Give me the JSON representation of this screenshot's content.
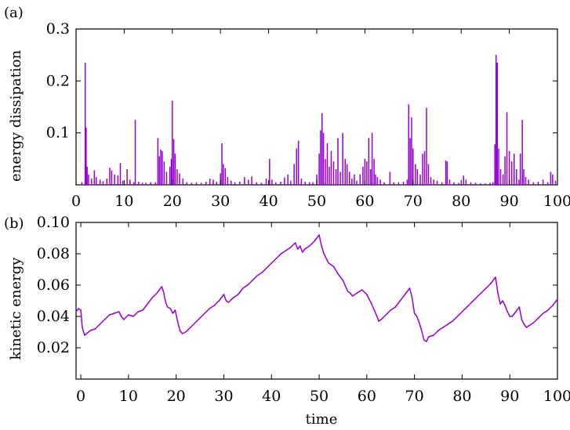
{
  "chart_data": [
    {
      "type": "bar",
      "panel_label": "(a)",
      "title": "",
      "xlabel": "",
      "ylabel": "energy dissipation",
      "xlim": [
        0,
        100
      ],
      "ylim": [
        0,
        0.3
      ],
      "x_ticks": [
        0,
        10,
        20,
        30,
        40,
        50,
        60,
        70,
        80,
        90,
        100
      ],
      "y_ticks": [
        0.1,
        0.2,
        0.3
      ],
      "y_tick_labels": [
        "0.1",
        "0.2",
        "0.3"
      ],
      "grid": false,
      "legend": "none",
      "color": "#9400d3",
      "series": [
        {
          "points": [
            [
              1.2,
              0.005
            ],
            [
              1.9,
              0.235
            ],
            [
              2.1,
              0.11
            ],
            [
              2.3,
              0.035
            ],
            [
              2.6,
              0.02
            ],
            [
              3.2,
              0.012
            ],
            [
              3.8,
              0.028
            ],
            [
              4.2,
              0.015
            ],
            [
              5.0,
              0.01
            ],
            [
              5.6,
              0.007
            ],
            [
              6.4,
              0.012
            ],
            [
              7.0,
              0.033
            ],
            [
              7.4,
              0.028
            ],
            [
              8.0,
              0.02
            ],
            [
              8.7,
              0.018
            ],
            [
              9.2,
              0.042
            ],
            [
              9.7,
              0.008
            ],
            [
              10.6,
              0.03
            ],
            [
              11.2,
              0.01
            ],
            [
              12.0,
              0.005
            ],
            [
              12.3,
              0.125
            ],
            [
              13.0,
              0.006
            ],
            [
              13.8,
              0.004
            ],
            [
              14.5,
              0.004
            ],
            [
              15.5,
              0.005
            ],
            [
              16.5,
              0.005
            ],
            [
              17.0,
              0.09
            ],
            [
              17.3,
              0.055
            ],
            [
              17.6,
              0.068
            ],
            [
              17.9,
              0.065
            ],
            [
              18.3,
              0.045
            ],
            [
              18.8,
              0.025
            ],
            [
              19.5,
              0.035
            ],
            [
              19.8,
              0.05
            ],
            [
              20.0,
              0.162
            ],
            [
              20.3,
              0.088
            ],
            [
              20.6,
              0.06
            ],
            [
              21.0,
              0.03
            ],
            [
              21.5,
              0.022
            ],
            [
              22.2,
              0.012
            ],
            [
              23.0,
              0.005
            ],
            [
              24.0,
              0.004
            ],
            [
              25.0,
              0.005
            ],
            [
              26.0,
              0.004
            ],
            [
              27.0,
              0.006
            ],
            [
              27.8,
              0.012
            ],
            [
              28.5,
              0.01
            ],
            [
              29.2,
              0.006
            ],
            [
              30.0,
              0.022
            ],
            [
              30.3,
              0.08
            ],
            [
              30.6,
              0.04
            ],
            [
              31.0,
              0.032
            ],
            [
              31.5,
              0.015
            ],
            [
              32.2,
              0.008
            ],
            [
              33.0,
              0.005
            ],
            [
              34.0,
              0.006
            ],
            [
              35.0,
              0.015
            ],
            [
              35.8,
              0.01
            ],
            [
              36.5,
              0.016
            ],
            [
              37.5,
              0.005
            ],
            [
              38.5,
              0.004
            ],
            [
              39.5,
              0.012
            ],
            [
              40.2,
              0.05
            ],
            [
              40.7,
              0.01
            ],
            [
              41.5,
              0.005
            ],
            [
              42.5,
              0.006
            ],
            [
              43.3,
              0.014
            ],
            [
              44.0,
              0.02
            ],
            [
              44.6,
              0.008
            ],
            [
              45.3,
              0.04
            ],
            [
              45.8,
              0.07
            ],
            [
              46.2,
              0.085
            ],
            [
              46.8,
              0.012
            ],
            [
              47.6,
              0.006
            ],
            [
              48.5,
              0.005
            ],
            [
              49.2,
              0.005
            ],
            [
              50.0,
              0.02
            ],
            [
              50.5,
              0.06
            ],
            [
              50.8,
              0.105
            ],
            [
              51.1,
              0.138
            ],
            [
              51.4,
              0.1
            ],
            [
              51.8,
              0.05
            ],
            [
              52.2,
              0.08
            ],
            [
              52.6,
              0.035
            ],
            [
              53.0,
              0.065
            ],
            [
              53.5,
              0.045
            ],
            [
              54.0,
              0.03
            ],
            [
              54.4,
              0.09
            ],
            [
              54.9,
              0.025
            ],
            [
              55.4,
              0.1
            ],
            [
              55.9,
              0.05
            ],
            [
              56.3,
              0.04
            ],
            [
              56.8,
              0.025
            ],
            [
              57.3,
              0.012
            ],
            [
              57.8,
              0.02
            ],
            [
              58.3,
              0.008
            ],
            [
              59.0,
              0.02
            ],
            [
              59.6,
              0.035
            ],
            [
              60.0,
              0.05
            ],
            [
              60.4,
              0.045
            ],
            [
              60.8,
              0.09
            ],
            [
              61.2,
              0.03
            ],
            [
              61.5,
              0.1
            ],
            [
              61.9,
              0.05
            ],
            [
              62.2,
              0.02
            ],
            [
              62.6,
              0.015
            ],
            [
              63.2,
              0.01
            ],
            [
              64.0,
              0.005
            ],
            [
              65.2,
              0.025
            ],
            [
              66.0,
              0.005
            ],
            [
              67.0,
              0.005
            ],
            [
              68.0,
              0.006
            ],
            [
              68.8,
              0.01
            ],
            [
              69.1,
              0.155
            ],
            [
              69.4,
              0.09
            ],
            [
              69.7,
              0.13
            ],
            [
              70.0,
              0.07
            ],
            [
              70.5,
              0.04
            ],
            [
              70.9,
              0.03
            ],
            [
              71.5,
              0.02
            ],
            [
              72.0,
              0.06
            ],
            [
              72.4,
              0.065
            ],
            [
              72.8,
              0.148
            ],
            [
              73.2,
              0.04
            ],
            [
              73.7,
              0.015
            ],
            [
              74.3,
              0.01
            ],
            [
              75.0,
              0.008
            ],
            [
              76.0,
              0.005
            ],
            [
              76.8,
              0.047
            ],
            [
              77.1,
              0.045
            ],
            [
              77.6,
              0.01
            ],
            [
              78.5,
              0.005
            ],
            [
              79.5,
              0.004
            ],
            [
              80.5,
              0.018
            ],
            [
              81.0,
              0.01
            ],
            [
              82.0,
              0.005
            ],
            [
              83.0,
              0.004
            ],
            [
              84.0,
              0.003
            ],
            [
              85.0,
              0.003
            ],
            [
              86.0,
              0.004
            ],
            [
              86.6,
              0.005
            ],
            [
              87.0,
              0.078
            ],
            [
              87.25,
              0.25
            ],
            [
              87.5,
              0.235
            ],
            [
              87.8,
              0.07
            ],
            [
              88.2,
              0.03
            ],
            [
              88.7,
              0.02
            ],
            [
              89.1,
              0.055
            ],
            [
              89.5,
              0.14
            ],
            [
              90.0,
              0.065
            ],
            [
              90.5,
              0.045
            ],
            [
              91.0,
              0.06
            ],
            [
              91.5,
              0.03
            ],
            [
              92.0,
              0.01
            ],
            [
              92.3,
              0.06
            ],
            [
              92.7,
              0.125
            ],
            [
              93.0,
              0.03
            ],
            [
              93.4,
              0.015
            ],
            [
              94.0,
              0.01
            ],
            [
              95.0,
              0.005
            ],
            [
              96.0,
              0.006
            ],
            [
              97.0,
              0.01
            ],
            [
              98.0,
              0.005
            ],
            [
              98.6,
              0.025
            ],
            [
              99.0,
              0.02
            ],
            [
              99.6,
              0.008
            ]
          ]
        }
      ]
    },
    {
      "type": "line",
      "panel_label": "(b)",
      "title": "",
      "xlabel": "time",
      "ylabel": "kinetic energy",
      "xlim": [
        -1,
        100
      ],
      "ylim": [
        0.0,
        0.1
      ],
      "x_ticks": [
        0,
        10,
        20,
        30,
        40,
        50,
        60,
        70,
        80,
        90,
        100
      ],
      "y_ticks": [
        0.02,
        0.04,
        0.06,
        0.08,
        0.1
      ],
      "y_tick_labels": [
        "0.02",
        "0.04",
        "0.06",
        "0.08",
        "0.10"
      ],
      "grid": false,
      "legend": "none",
      "color": "#9400d3",
      "series": [
        {
          "x": [
            -1,
            -0.5,
            0,
            0.3,
            0.8,
            2,
            3,
            4,
            5,
            6,
            7,
            8,
            8.5,
            9,
            10,
            11,
            12,
            13,
            14,
            15,
            16,
            17,
            17.4,
            17.8,
            18.2,
            18.8,
            19.3,
            19.8,
            20.3,
            20.8,
            21.3,
            22,
            23,
            24,
            25,
            26,
            27,
            28,
            29,
            30,
            30.5,
            31,
            32,
            33,
            34,
            35,
            36,
            37,
            38,
            39,
            40,
            41,
            42,
            43,
            44,
            45,
            45.5,
            46,
            46.5,
            47,
            48,
            49,
            50,
            50.5,
            51,
            51.5,
            52,
            53,
            54,
            55,
            56,
            56.5,
            57,
            58,
            59,
            60,
            61,
            62,
            62.5,
            63,
            64,
            65,
            66,
            67,
            68,
            69,
            69.5,
            70,
            70.5,
            71,
            71.5,
            72,
            72.5,
            73,
            74,
            75,
            76,
            77,
            78,
            79,
            80,
            81,
            82,
            83,
            84,
            85,
            86,
            87,
            87.5,
            88,
            88.5,
            89,
            89.5,
            90,
            90.5,
            91,
            91.5,
            92,
            92.5,
            93,
            93.5,
            94,
            95,
            96,
            97,
            98,
            99,
            100
          ],
          "y": [
            0.043,
            0.045,
            0.044,
            0.033,
            0.028,
            0.031,
            0.032,
            0.035,
            0.038,
            0.041,
            0.042,
            0.043,
            0.04,
            0.038,
            0.041,
            0.04,
            0.043,
            0.044,
            0.048,
            0.052,
            0.055,
            0.059,
            0.055,
            0.049,
            0.046,
            0.045,
            0.042,
            0.044,
            0.037,
            0.031,
            0.029,
            0.03,
            0.033,
            0.036,
            0.039,
            0.042,
            0.045,
            0.047,
            0.05,
            0.054,
            0.05,
            0.049,
            0.052,
            0.054,
            0.058,
            0.06,
            0.063,
            0.066,
            0.068,
            0.071,
            0.074,
            0.077,
            0.08,
            0.082,
            0.084,
            0.087,
            0.083,
            0.085,
            0.081,
            0.083,
            0.085,
            0.088,
            0.092,
            0.085,
            0.08,
            0.077,
            0.074,
            0.072,
            0.067,
            0.063,
            0.056,
            0.055,
            0.053,
            0.055,
            0.057,
            0.054,
            0.048,
            0.041,
            0.037,
            0.038,
            0.041,
            0.044,
            0.046,
            0.05,
            0.054,
            0.058,
            0.052,
            0.042,
            0.04,
            0.036,
            0.031,
            0.025,
            0.024,
            0.027,
            0.028,
            0.031,
            0.033,
            0.035,
            0.037,
            0.04,
            0.043,
            0.046,
            0.049,
            0.052,
            0.055,
            0.058,
            0.061,
            0.065,
            0.055,
            0.048,
            0.05,
            0.047,
            0.043,
            0.04,
            0.04,
            0.042,
            0.044,
            0.046,
            0.038,
            0.035,
            0.033,
            0.034,
            0.036,
            0.039,
            0.042,
            0.044,
            0.047,
            0.051
          ]
        }
      ]
    }
  ]
}
